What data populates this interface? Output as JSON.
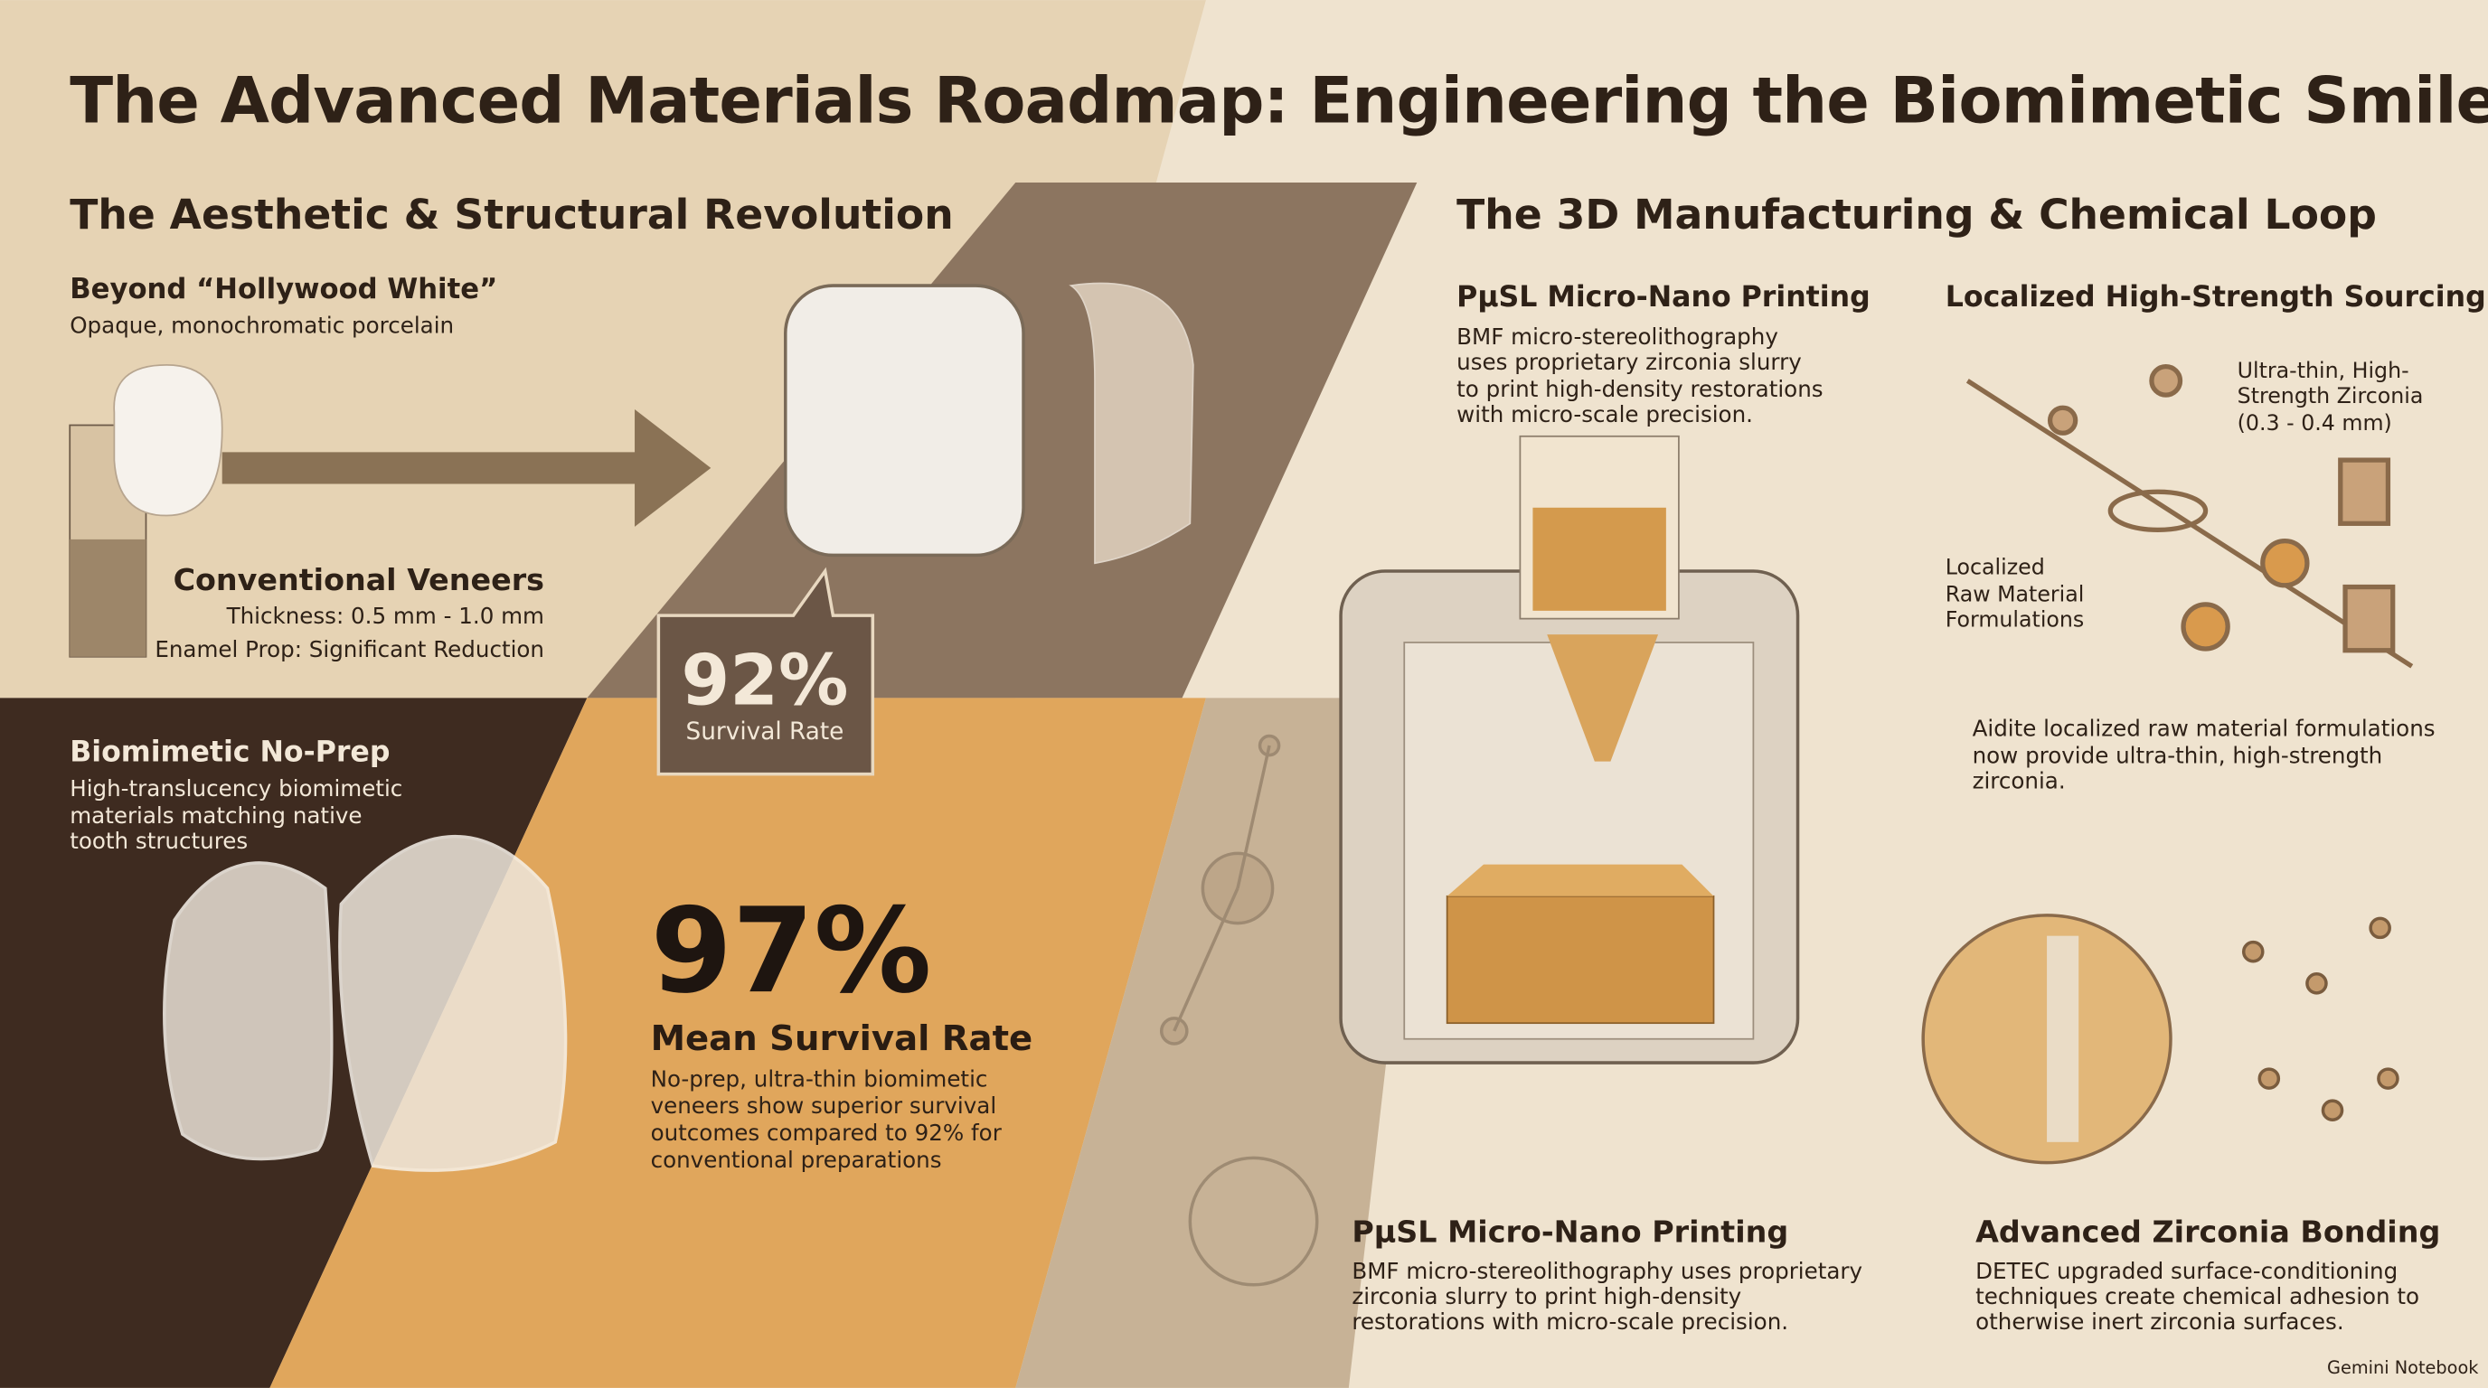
{
  "header": {
    "title": "The Advanced Materials Roadmap: Engineering the Biomimetic Smile"
  },
  "left": {
    "heading": "The Aesthetic & Structural Revolution",
    "beyond": {
      "title": "Beyond “Hollywood White”",
      "text": "Opaque, monochromatic porcelain"
    },
    "conventional": {
      "title": "Conventional Veneers",
      "lines": [
        "Thickness: 0.5 mm - 1.0 mm",
        "Enamel Prop: Significant Reduction"
      ]
    },
    "stat_conventional": {
      "value": "92%",
      "label": "Survival Rate"
    },
    "biomimetic": {
      "title": "Biomimetic No-Prep",
      "lines": [
        "High-translucency biomimetic",
        "materials matching native",
        "tooth structures"
      ]
    },
    "stat_biomimetic": {
      "value": "97%",
      "label": "Mean Survival Rate",
      "lines": [
        "No-prep, ultra-thin biomimetic",
        "veneers show superior survival",
        "outcomes compared to 92% for",
        "conventional preparations"
      ]
    }
  },
  "right": {
    "heading": "The 3D Manufacturing & Chemical Loop",
    "printing_top": {
      "title": "PμSL Micro-Nano Printing",
      "lines": [
        "BMF micro-stereolithography",
        "uses proprietary zirconia slurry",
        "to print high-density restorations",
        "with micro-scale precision."
      ]
    },
    "sourcing": {
      "title": "Localized High-Strength Sourcing",
      "callout_zirconia": [
        "Ultra-thin, High-",
        "Strength Zirconia",
        "(0.3 - 0.4 mm)"
      ],
      "callout_raw": [
        "Localized",
        "Raw Material",
        "Formulations"
      ],
      "lines": [
        "Aidite localized raw material formulations",
        "now provide ultra-thin, high-strength",
        "zirconia."
      ]
    },
    "printing_bottom": {
      "title": "PμSL Micro-Nano Printing",
      "lines": [
        "BMF micro-stereolithography uses proprietary",
        "zirconia slurry to print high-density",
        "restorations with micro-scale precision."
      ]
    },
    "bonding": {
      "title": "Advanced Zirconia Bonding",
      "lines": [
        "DETEC upgraded surface-conditioning",
        "techniques create chemical adhesion to",
        "otherwise inert zirconia surfaces."
      ]
    }
  },
  "footer": {
    "brand": "Gemini Notebook"
  }
}
